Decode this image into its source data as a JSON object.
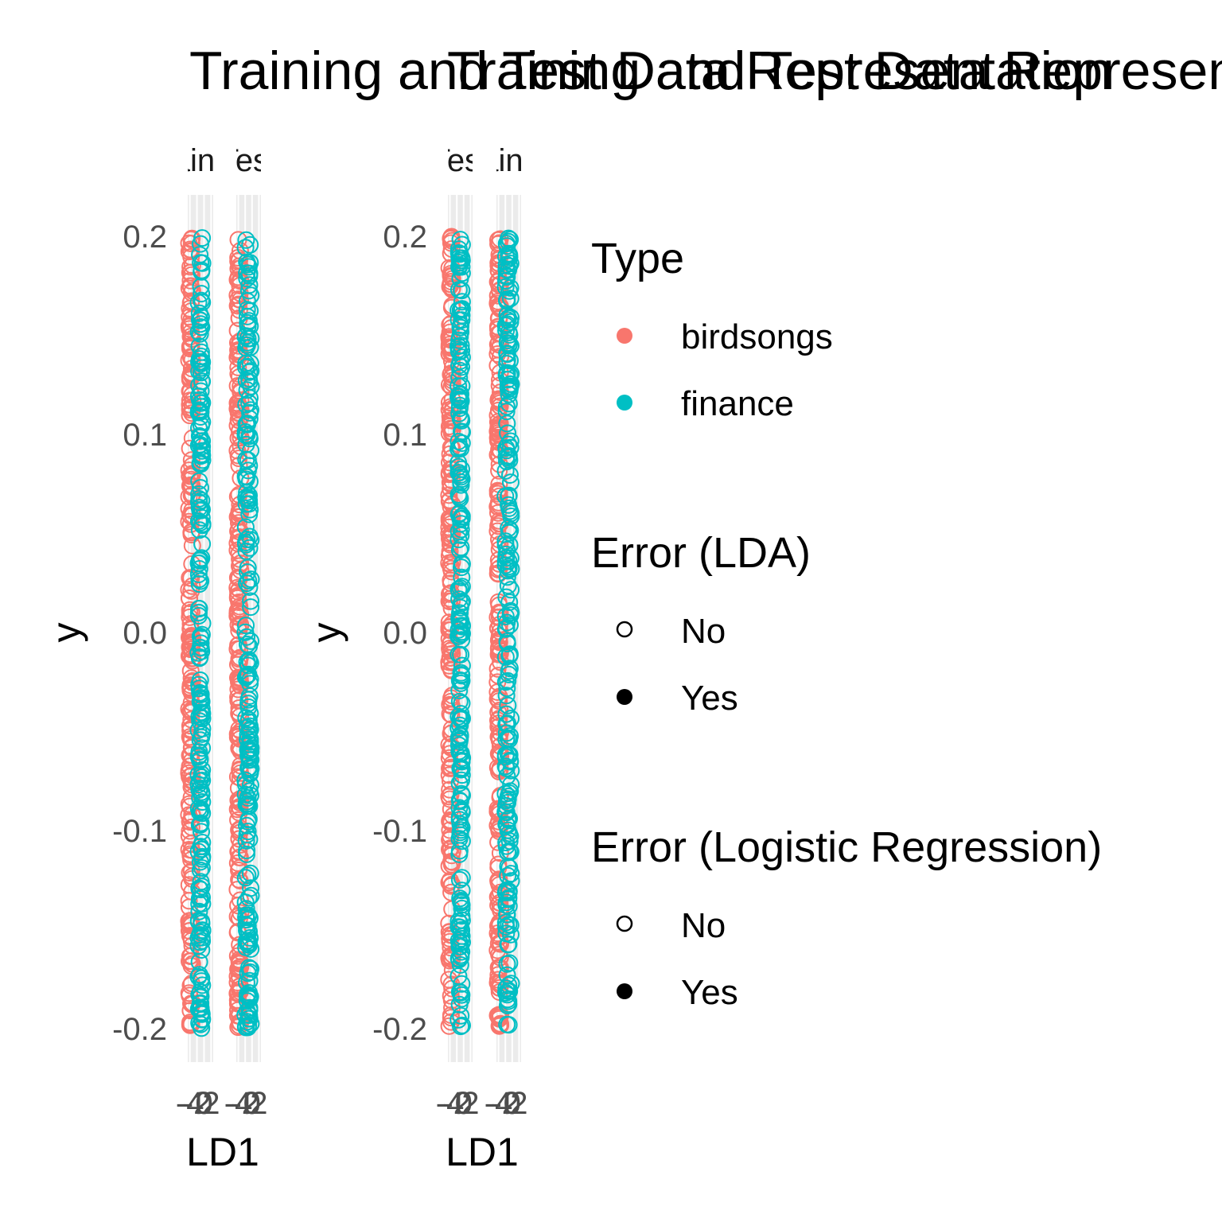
{
  "colors": {
    "birdsongs": "#F8766D",
    "finance": "#00BFC4",
    "panel_bg": "#EBEBEB",
    "grid": "#FFFFFF"
  },
  "chart_data": [
    {
      "type": "scatter",
      "title": "Training and Test Data Representation",
      "xlabel": "LD1",
      "ylabel": "y",
      "ylim": [
        -0.2,
        0.2
      ],
      "y_ticks": [
        "0.2",
        "0.1",
        "0.0",
        "-0.1",
        "-0.2"
      ],
      "x_ticks": [
        "-4",
        "-2",
        "0",
        "2"
      ],
      "facets": [
        {
          "strip": "Training",
          "birdsongs_x": [
            -4.3,
            -3.2
          ],
          "finance_x": [
            -1.6,
            -0.4
          ]
        },
        {
          "strip": "Test",
          "birdsongs_x": [
            -4.3,
            -3.3
          ],
          "finance_x": [
            -2.0,
            -0.3
          ]
        }
      ],
      "marker": "open circle",
      "legend_position": "right"
    },
    {
      "type": "scatter",
      "title": "Training and Test Data Representation",
      "xlabel": "LD1",
      "ylabel": "y",
      "ylim": [
        -0.2,
        0.2
      ],
      "y_ticks": [
        "0.2",
        "0.1",
        "0.0",
        "-0.1",
        "-0.2"
      ],
      "x_ticks": [
        "-4",
        "-2",
        "0",
        "2"
      ],
      "facets": [
        {
          "strip": "Test",
          "birdsongs_x": [
            -4.3,
            -3.2
          ],
          "finance_x": [
            -1.6,
            -0.4
          ]
        },
        {
          "strip": "Training",
          "birdsongs_x": [
            -4.3,
            -3.4
          ],
          "finance_x": [
            -2.0,
            -0.3
          ]
        }
      ],
      "marker": "open circle",
      "legend_position": "right"
    }
  ],
  "legend": {
    "type_title": "Type",
    "type_items": [
      "birdsongs",
      "finance"
    ],
    "lda_title": "Error (LDA)",
    "lda_items": [
      "No",
      "Yes"
    ],
    "logit_title": "Error (Logistic Regression)",
    "logit_items": [
      "No",
      "Yes"
    ]
  }
}
